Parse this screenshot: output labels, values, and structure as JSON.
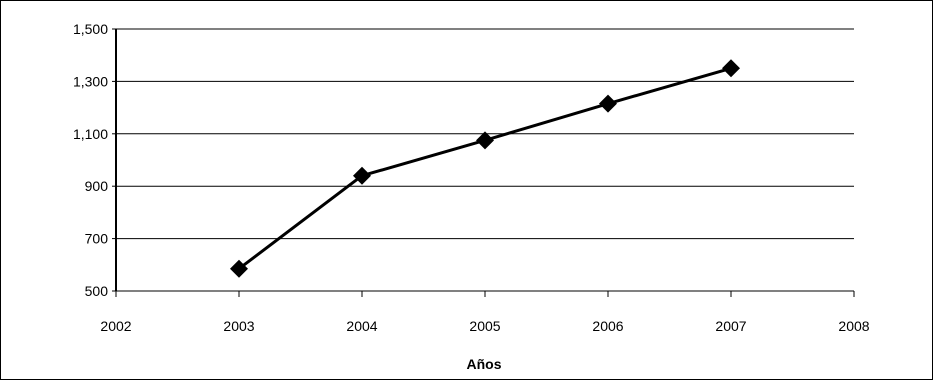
{
  "chart_data": {
    "type": "line",
    "title": "",
    "xlabel": "Años",
    "ylabel": "",
    "x": [
      2003,
      2004,
      2005,
      2006,
      2007
    ],
    "series": [
      {
        "values": [
          585,
          940,
          1075,
          1215,
          1350
        ]
      }
    ],
    "xlim": [
      2002,
      2008
    ],
    "ylim": [
      500,
      1500
    ],
    "x_ticks": [
      "2002",
      "2003",
      "2004",
      "2005",
      "2006",
      "2007",
      "2008"
    ],
    "y_ticks": [
      "500",
      "700",
      "900",
      "1,100",
      "1,300",
      "1,500"
    ],
    "grid": "horizontal",
    "legend": "none",
    "colors": {
      "line": "#000000",
      "marker": "#000000",
      "grid": "#000000"
    },
    "marker": "diamond"
  }
}
